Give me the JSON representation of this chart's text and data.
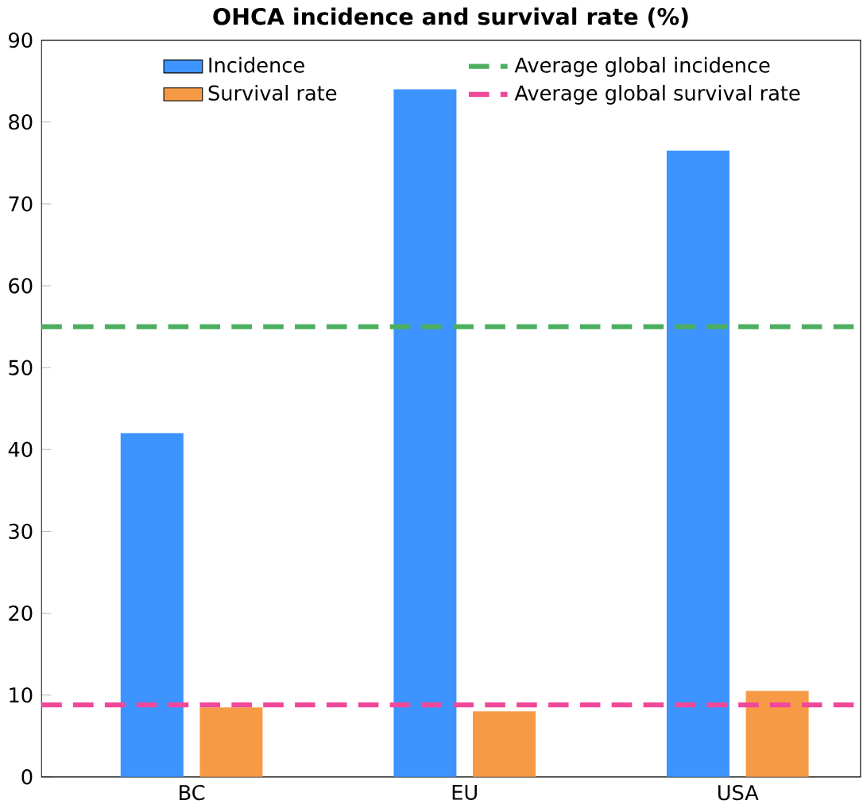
{
  "chart_data": {
    "type": "bar",
    "title": "OHCA incidence and survival rate (%)",
    "categories": [
      "BC",
      "EU",
      "USA"
    ],
    "series": [
      {
        "name": "Incidence",
        "color": "#3d94ff",
        "values": [
          42,
          84,
          76.5
        ]
      },
      {
        "name": "Survival rate",
        "color": "#f79a45",
        "values": [
          8.5,
          8,
          10.5
        ]
      }
    ],
    "ylim": [
      0,
      90
    ],
    "yticks": [
      0,
      10,
      20,
      30,
      40,
      50,
      60,
      70,
      80,
      90
    ],
    "grid": false,
    "legend": "top",
    "ref_lines": [
      {
        "axis": "y",
        "value": 55,
        "label": "Average global incidence",
        "color": "#4caf60",
        "line_style": "dashed"
      },
      {
        "axis": "y",
        "value": 8.8,
        "label": "Average global survival rate",
        "color": "#f0489a",
        "line_style": "dashed"
      }
    ]
  }
}
